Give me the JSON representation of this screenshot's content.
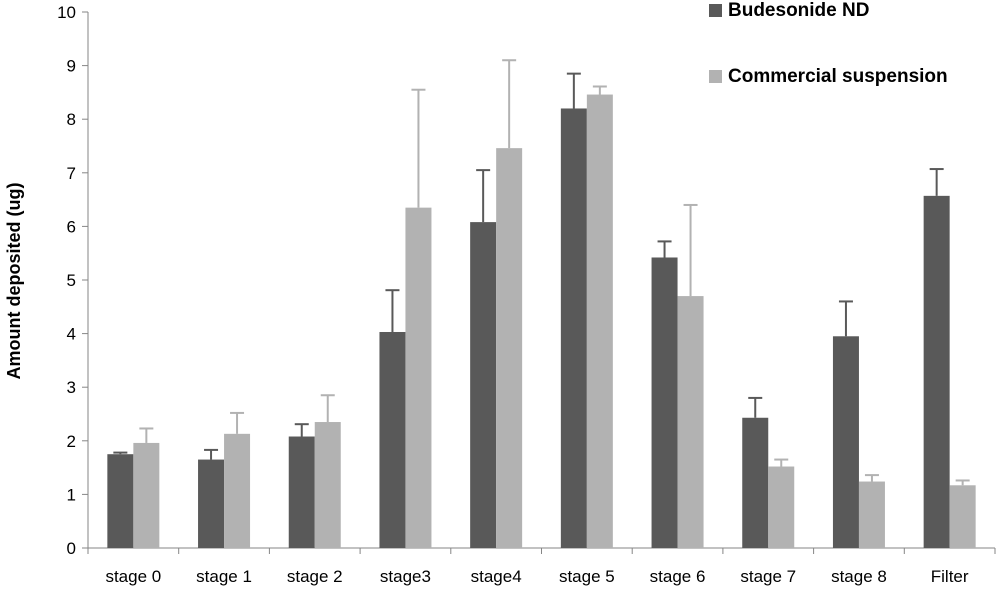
{
  "chart_data": {
    "type": "bar",
    "title": "",
    "xlabel": "",
    "ylabel": "Amount deposited (ug)",
    "ylim": [
      0,
      10
    ],
    "yticks": [
      "0",
      "1",
      "2",
      "3",
      "4",
      "5",
      "6",
      "7",
      "8",
      "9",
      "10"
    ],
    "grid": false,
    "legend_position": "top-right",
    "categories": [
      "stage 0",
      "stage 1",
      "stage 2",
      "stage3",
      "stage4",
      "stage 5",
      "stage 6",
      "stage 7",
      "stage 8",
      "Filter"
    ],
    "series": [
      {
        "name": "Budesonide ND",
        "color": "#595959",
        "values": [
          1.75,
          1.65,
          2.08,
          4.03,
          6.08,
          8.2,
          5.42,
          2.43,
          3.95,
          6.57
        ],
        "error": [
          0.03,
          0.18,
          0.23,
          0.78,
          0.97,
          0.65,
          0.3,
          0.37,
          0.65,
          0.5
        ]
      },
      {
        "name": "Commercial suspension",
        "color": "#b2b2b2",
        "values": [
          1.96,
          2.13,
          2.35,
          6.35,
          7.46,
          8.46,
          4.7,
          1.52,
          1.24,
          1.17
        ],
        "error": [
          0.27,
          0.39,
          0.5,
          2.2,
          1.64,
          0.15,
          1.7,
          0.13,
          0.12,
          0.09
        ]
      }
    ]
  }
}
